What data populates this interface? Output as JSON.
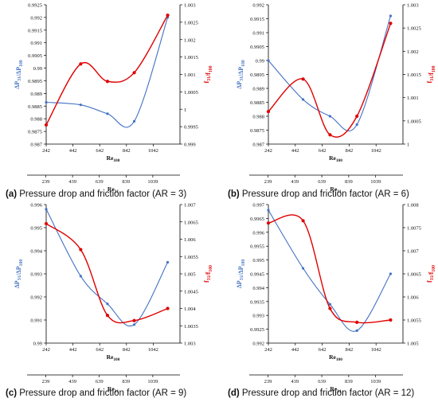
{
  "colors": {
    "series1": "#4472c4",
    "series2": "#e00000",
    "axis": "#000000"
  },
  "chart_data": [
    {
      "type": "line",
      "caption_letter": "(a)",
      "caption_text": "Pressure drop and friction factor (AR = 3)",
      "ylabel_left": "ΔP31/ΔP100",
      "ylabel_right": "f31/f100",
      "xlabel": "Re100",
      "xlabel2": "Re31",
      "x_ticks": [
        "242",
        "442",
        "642",
        "842",
        "1042"
      ],
      "x2_ticks": [
        "239",
        "439",
        "639",
        "839",
        "1039"
      ],
      "ylim_left": [
        0.987,
        0.9925
      ],
      "ylim_right": [
        0.999,
        1.003
      ],
      "yticks_left": [
        "0.987",
        "0.9875",
        "0.988",
        "0.9885",
        "0.989",
        "0.9895",
        "0.99",
        "0.9905",
        "0.991",
        "0.9915",
        "0.992",
        "0.9925"
      ],
      "yticks_right": [
        "0.999",
        "0.9995",
        "1",
        "1.0005",
        "1.001",
        "1.0015",
        "1.002",
        "1.0025",
        "1.003"
      ],
      "series": [
        {
          "axis": "left",
          "x": [
            242,
            500,
            700,
            900,
            1150
          ],
          "y": [
            0.98865,
            0.98855,
            0.9882,
            0.9879,
            0.992
          ]
        },
        {
          "axis": "right",
          "x": [
            242,
            500,
            700,
            900,
            1150
          ],
          "y": [
            0.99955,
            1.0013,
            1.0008,
            1.00105,
            1.0027
          ]
        }
      ]
    },
    {
      "type": "line",
      "caption_letter": "(b)",
      "caption_text": "Pressure drop and friction factor (AR = 6)",
      "ylabel_left": "ΔP31/ΔP100",
      "ylabel_right": "f31/f100",
      "xlabel": "Re100",
      "xlabel2": "Re31",
      "x_ticks": [
        "242",
        "442",
        "642",
        "842",
        "1042"
      ],
      "x2_ticks": [
        "239",
        "439",
        "639",
        "839",
        "1039"
      ],
      "ylim_left": [
        0.987,
        0.992
      ],
      "ylim_right": [
        1,
        1.003
      ],
      "yticks_left": [
        "0.987",
        "0.9875",
        "0.988",
        "0.9885",
        "0.989",
        "0.9895",
        "0.99",
        "0.9905",
        "0.991",
        "0.9915",
        "0.992"
      ],
      "yticks_right": [
        "1",
        "1.0005",
        "1.001",
        "1.0015",
        "1.002",
        "1.0025",
        "1.003"
      ],
      "series": [
        {
          "axis": "left",
          "x": [
            242,
            500,
            700,
            900,
            1150
          ],
          "y": [
            0.99,
            0.9886,
            0.988,
            0.9877,
            0.9916
          ]
        },
        {
          "axis": "right",
          "x": [
            242,
            500,
            700,
            900,
            1150
          ],
          "y": [
            1.0007,
            1.0014,
            1.0002,
            1.0006,
            1.0026
          ]
        }
      ]
    },
    {
      "type": "line",
      "caption_letter": "(c)",
      "caption_text": "Pressure drop and friction factor (AR = 9)",
      "ylabel_left": "ΔP31/ΔP100",
      "ylabel_right": "f31/f100",
      "xlabel": "Re100",
      "xlabel2": "Re31",
      "x_ticks": [
        "242",
        "442",
        "642",
        "842",
        "1042"
      ],
      "x2_ticks": [
        "239",
        "439",
        "639",
        "839",
        "1039"
      ],
      "ylim_left": [
        0.99,
        0.996
      ],
      "ylim_right": [
        1.003,
        1.007
      ],
      "yticks_left": [
        "0.99",
        "0.991",
        "0.992",
        "0.993",
        "0.994",
        "0.995",
        "0.996"
      ],
      "yticks_right": [
        "1.003",
        "1.0035",
        "1.004",
        "1.0045",
        "1.005",
        "1.0055",
        "1.006",
        "1.0065",
        "1.007"
      ],
      "series": [
        {
          "axis": "left",
          "x": [
            242,
            500,
            700,
            900,
            1150
          ],
          "y": [
            0.9958,
            0.9929,
            0.9917,
            0.9908,
            0.9935
          ]
        },
        {
          "axis": "right",
          "x": [
            242,
            500,
            700,
            900,
            1150
          ],
          "y": [
            1.00645,
            1.0057,
            1.0038,
            1.00365,
            1.004
          ]
        }
      ]
    },
    {
      "type": "line",
      "caption_letter": "(d)",
      "caption_text": "Pressure drop and friction factor (AR = 12)",
      "ylabel_left": "ΔP31/ΔP100",
      "ylabel_right": "f31/f100",
      "xlabel": "Re100",
      "xlabel2": "Re31",
      "x_ticks": [
        "242",
        "442",
        "642",
        "842",
        "1042"
      ],
      "x2_ticks": [
        "239",
        "439",
        "639",
        "839",
        "1039"
      ],
      "ylim_left": [
        0.992,
        0.997
      ],
      "ylim_right": [
        1.005,
        1.008
      ],
      "yticks_left": [
        "0.992",
        "0.9925",
        "0.993",
        "0.9935",
        "0.994",
        "0.9945",
        "0.995",
        "0.9955",
        "0.996",
        "0.9965",
        "0.997"
      ],
      "yticks_right": [
        "1.005",
        "1.0055",
        "1.006",
        "1.0065",
        "1.007",
        "1.0075",
        "1.008"
      ],
      "series": [
        {
          "axis": "left",
          "x": [
            242,
            500,
            700,
            900,
            1150
          ],
          "y": [
            0.9968,
            0.9947,
            0.9934,
            0.99245,
            0.9945
          ]
        },
        {
          "axis": "right",
          "x": [
            242,
            500,
            700,
            900,
            1150
          ],
          "y": [
            1.0076,
            1.00765,
            1.00575,
            1.00545,
            1.0055
          ]
        }
      ]
    }
  ]
}
